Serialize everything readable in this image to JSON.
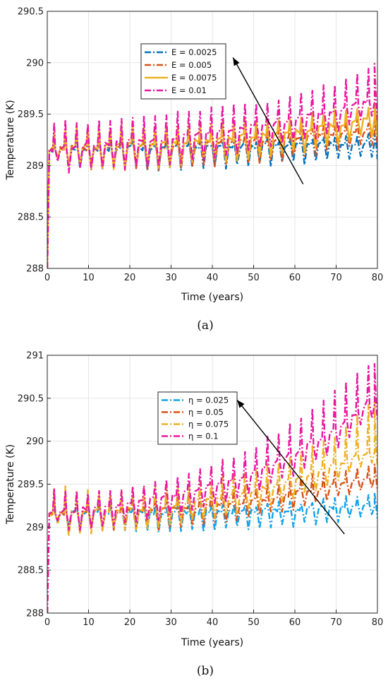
{
  "chart_data": [
    {
      "type": "line",
      "panel_label": "(a)",
      "xlabel": "Time (years)",
      "ylabel": "Temperature (K)",
      "xlim": [
        0,
        80
      ],
      "ylim": [
        288,
        290.5
      ],
      "xticks": [
        "0",
        "10",
        "20",
        "30",
        "40",
        "50",
        "60",
        "70",
        "80"
      ],
      "yticks": [
        "288",
        "288.5",
        "289",
        "289.5",
        "290",
        "290.5"
      ],
      "grid": true,
      "legend_position": "top-center",
      "arrow": {
        "from": [
          62,
          288.82
        ],
        "to": [
          45,
          290.05
        ]
      },
      "series": [
        {
          "name": "E = 0.0025",
          "color": "#0072BD",
          "style": "dash-dot",
          "x": [
            0,
            1,
            5,
            10,
            20,
            30,
            40,
            50,
            60,
            70,
            78,
            80
          ],
          "mean": [
            288.0,
            289.15,
            289.17,
            289.17,
            289.17,
            289.17,
            289.18,
            289.19,
            289.2,
            289.21,
            289.22,
            289.22
          ],
          "upper": [
            288.0,
            289.3,
            289.3,
            289.27,
            289.25,
            289.24,
            289.24,
            289.26,
            289.28,
            289.3,
            289.31,
            289.31
          ],
          "lower": [
            288.0,
            289.1,
            288.98,
            288.97,
            288.95,
            288.94,
            288.96,
            288.98,
            289.0,
            289.03,
            289.06,
            289.06
          ]
        },
        {
          "name": "E = 0.005",
          "color": "#D95319",
          "style": "dash-dot",
          "x": [
            0,
            1,
            5,
            10,
            20,
            30,
            40,
            50,
            60,
            70,
            78,
            80
          ],
          "mean": [
            288.0,
            289.15,
            289.17,
            289.17,
            289.18,
            289.19,
            289.21,
            289.24,
            289.27,
            289.31,
            289.34,
            289.34
          ],
          "upper": [
            288.0,
            289.3,
            289.35,
            289.34,
            289.33,
            289.35,
            289.35,
            289.36,
            289.39,
            289.43,
            289.46,
            289.46
          ],
          "lower": [
            288.0,
            289.1,
            288.97,
            288.96,
            288.95,
            288.95,
            288.98,
            289.0,
            289.05,
            289.12,
            289.18,
            289.18
          ]
        },
        {
          "name": "E = 0.0075",
          "color": "#EDB120",
          "style": "solid",
          "x": [
            0,
            1,
            5,
            10,
            20,
            30,
            40,
            50,
            60,
            70,
            78,
            80
          ],
          "mean": [
            288.0,
            289.15,
            289.17,
            289.18,
            289.2,
            289.22,
            289.25,
            289.29,
            289.33,
            289.39,
            289.45,
            289.45
          ],
          "upper": [
            288.0,
            289.35,
            289.4,
            289.4,
            289.42,
            289.42,
            289.44,
            289.47,
            289.5,
            289.56,
            289.61,
            289.61
          ],
          "lower": [
            288.0,
            289.1,
            288.97,
            288.96,
            288.96,
            288.98,
            289.02,
            289.06,
            289.11,
            289.18,
            289.28,
            289.28
          ]
        },
        {
          "name": "E = 0.01",
          "color": "#EA179F",
          "style": "dash-dot",
          "x": [
            0,
            1,
            5,
            10,
            20,
            30,
            40,
            50,
            60,
            70,
            78,
            80
          ],
          "mean": [
            288.0,
            289.16,
            289.18,
            289.2,
            289.23,
            289.27,
            289.32,
            289.38,
            289.45,
            289.53,
            289.62,
            289.62
          ],
          "upper": [
            288.0,
            289.45,
            289.46,
            289.45,
            289.48,
            289.52,
            289.58,
            289.63,
            289.7,
            289.82,
            289.99,
            289.99
          ],
          "lower": [
            288.0,
            289.1,
            288.92,
            288.95,
            288.96,
            289.0,
            289.05,
            289.12,
            289.2,
            289.3,
            289.44,
            289.44
          ]
        }
      ]
    },
    {
      "type": "line",
      "panel_label": "(b)",
      "xlabel": "Time (years)",
      "ylabel": "Temperature (K)",
      "xlim": [
        0,
        80
      ],
      "ylim": [
        288,
        291
      ],
      "xticks": [
        "0",
        "10",
        "20",
        "30",
        "40",
        "50",
        "60",
        "70",
        "80"
      ],
      "yticks": [
        "288",
        "288.5",
        "289",
        "289.5",
        "290",
        "290.5",
        "291"
      ],
      "grid": true,
      "legend_position": "top-center",
      "arrow": {
        "from": [
          72,
          288.92
        ],
        "to": [
          46,
          290.48
        ]
      },
      "series": [
        {
          "name": "η = 0.025",
          "color": "#12A3E8",
          "style": "dash-dot",
          "x": [
            0,
            1,
            5,
            10,
            20,
            30,
            40,
            50,
            60,
            70,
            78,
            80
          ],
          "mean": [
            288.0,
            289.15,
            289.17,
            289.17,
            289.17,
            289.17,
            289.18,
            289.19,
            289.21,
            289.24,
            289.26,
            289.26
          ],
          "upper": [
            288.0,
            289.3,
            289.3,
            289.28,
            289.26,
            289.25,
            289.26,
            289.28,
            289.31,
            289.35,
            289.4,
            289.4
          ],
          "lower": [
            288.0,
            289.1,
            288.97,
            288.96,
            288.94,
            288.93,
            288.95,
            288.97,
            289.0,
            289.05,
            289.1,
            289.1
          ]
        },
        {
          "name": "η = 0.05",
          "color": "#D95319",
          "style": "dash-dot",
          "x": [
            0,
            1,
            5,
            10,
            20,
            30,
            40,
            50,
            60,
            70,
            78,
            80
          ],
          "mean": [
            288.0,
            289.15,
            289.17,
            289.18,
            289.19,
            289.21,
            289.25,
            289.31,
            289.39,
            289.49,
            289.58,
            289.58
          ],
          "upper": [
            288.0,
            289.35,
            289.38,
            289.38,
            289.38,
            289.4,
            289.44,
            289.5,
            289.58,
            289.68,
            289.73,
            289.73
          ],
          "lower": [
            288.0,
            289.1,
            288.92,
            288.95,
            288.95,
            288.97,
            289.02,
            289.1,
            289.2,
            289.32,
            289.42,
            289.42
          ]
        },
        {
          "name": "η = 0.075",
          "color": "#EDB120",
          "style": "dash-dot",
          "x": [
            0,
            1,
            5,
            10,
            20,
            30,
            40,
            50,
            60,
            70,
            78,
            80
          ],
          "mean": [
            288.0,
            289.15,
            289.18,
            289.19,
            289.21,
            289.25,
            289.32,
            289.42,
            289.55,
            289.72,
            289.88,
            289.88
          ],
          "upper": [
            288.0,
            289.45,
            289.5,
            289.44,
            289.45,
            289.5,
            289.58,
            289.7,
            289.86,
            290.1,
            290.45,
            290.45
          ],
          "lower": [
            288.0,
            289.1,
            288.88,
            288.92,
            288.95,
            289.0,
            289.08,
            289.18,
            289.32,
            289.5,
            289.72,
            289.72
          ]
        },
        {
          "name": "η = 0.1",
          "color": "#EA179F",
          "style": "dash-dot",
          "x": [
            0,
            1,
            5,
            10,
            20,
            30,
            40,
            50,
            60,
            70,
            78,
            80
          ],
          "mean": [
            288.0,
            289.16,
            289.19,
            289.22,
            289.27,
            289.36,
            289.48,
            289.64,
            289.86,
            290.13,
            290.45,
            290.45
          ],
          "upper": [
            288.0,
            289.45,
            289.46,
            289.43,
            289.48,
            289.56,
            289.74,
            289.96,
            290.25,
            290.62,
            290.9,
            290.9
          ],
          "lower": [
            288.0,
            289.1,
            288.92,
            288.96,
            289.02,
            289.1,
            289.22,
            289.38,
            289.6,
            289.88,
            290.25,
            290.25
          ]
        }
      ]
    }
  ]
}
